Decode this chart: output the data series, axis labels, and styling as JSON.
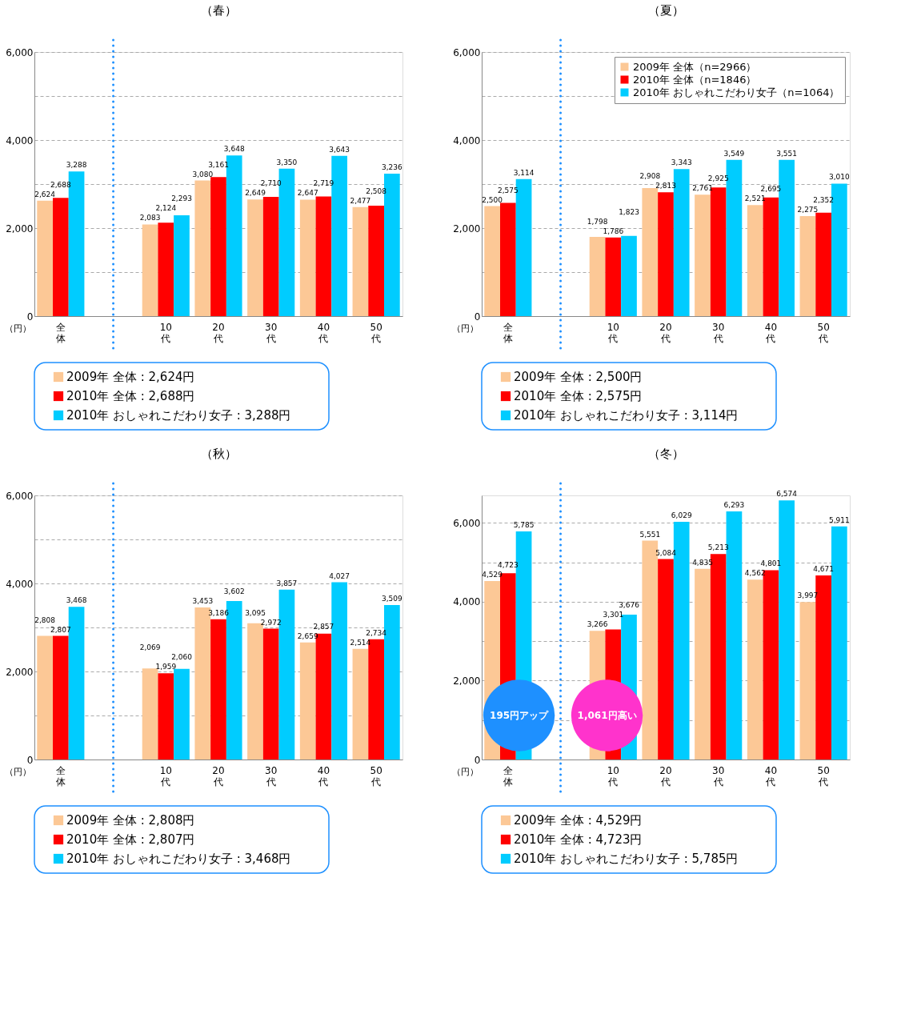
{
  "chart_data": [
    {
      "type": "bar",
      "title": "（春）",
      "ylabel": "（円）",
      "categories": [
        "全体",
        null,
        "10代",
        "20代",
        "30代",
        "40代",
        "50代"
      ],
      "series": [
        {
          "color": "#fcc896",
          "values": [
            2624,
            null,
            2083,
            3080,
            2649,
            2647,
            2477
          ],
          "value_labels": [
            "2,624",
            null,
            "2,083",
            "3,080",
            "2,649",
            "2,647",
            "2,477"
          ]
        },
        {
          "color": "#ff0000",
          "values": [
            2688,
            null,
            2124,
            3161,
            2710,
            2719,
            2508
          ],
          "value_labels": [
            "2,688",
            null,
            "2,124",
            "3,161",
            "2,710",
            "2,719",
            "2,508"
          ]
        },
        {
          "color": "#00ccff",
          "values": [
            3288,
            null,
            2293,
            3648,
            3350,
            3643,
            3236
          ],
          "value_labels": [
            "3,288",
            null,
            "2,293",
            "3,648",
            "3,350",
            "3,643",
            "3,236"
          ]
        }
      ],
      "ylim": [
        0,
        6000
      ],
      "yticks": [
        {
          "value": 0,
          "label": "0"
        },
        {
          "value": 1000,
          "label": null
        },
        {
          "value": 2000,
          "label": "2,000"
        },
        {
          "value": 3000,
          "label": null
        },
        {
          "value": 4000,
          "label": "4,000"
        },
        {
          "value": 5000,
          "label": null
        },
        {
          "value": 6000,
          "label": "6,000"
        }
      ],
      "grid": "y",
      "legend": false,
      "annotations": [
        "2009年 全体 : 2,624円",
        "2010年 全体 : 2,688円",
        "2010年 おしゃれこだわり女子 : 3,288円"
      ]
    },
    {
      "type": "bar",
      "title": "（夏）",
      "ylabel": "（円）",
      "categories": [
        "全体",
        null,
        "10代",
        "20代",
        "30代",
        "40代",
        "50代"
      ],
      "series": [
        {
          "name": "2009年 全体（n=2966）",
          "color": "#fcc896",
          "values": [
            2500,
            null,
            1798,
            2908,
            2761,
            2521,
            2275
          ],
          "value_labels": [
            "2,500",
            null,
            "1,798",
            "2,908",
            "2,761",
            "2,521",
            "2,275"
          ]
        },
        {
          "name": "2010年 全体（n=1846）",
          "color": "#ff0000",
          "values": [
            2575,
            null,
            1786,
            2813,
            2925,
            2695,
            2352
          ],
          "value_labels": [
            "2,575",
            null,
            "1,786",
            "2,813",
            "2,925",
            "2,695",
            "2,352"
          ]
        },
        {
          "name": "2010年 おしゃれこだわり女子（n=1064）",
          "color": "#00ccff",
          "values": [
            3114,
            null,
            1823,
            3343,
            3549,
            3551,
            3010
          ],
          "value_labels": [
            "3,114",
            null,
            "1,823",
            "3,343",
            "3,549",
            "3,551",
            "3,010"
          ]
        }
      ],
      "ylim": [
        0,
        6000
      ],
      "yticks": [
        {
          "value": 0,
          "label": "0"
        },
        {
          "value": 1000,
          "label": null
        },
        {
          "value": 2000,
          "label": "2,000"
        },
        {
          "value": 3000,
          "label": null
        },
        {
          "value": 4000,
          "label": "4,000"
        },
        {
          "value": 5000,
          "label": null
        },
        {
          "value": 6000,
          "label": "6,000"
        }
      ],
      "grid": "y",
      "legend": "top right",
      "annotations": [
        "2009年 全体 : 2,500円",
        "2010年 全体 : 2,575円",
        "2010年 おしゃれこだわり女子 : 3,114円"
      ]
    },
    {
      "type": "bar",
      "title": "（秋）",
      "ylabel": "（円）",
      "categories": [
        "全体",
        null,
        "10代",
        "20代",
        "30代",
        "40代",
        "50代"
      ],
      "series": [
        {
          "color": "#fcc896",
          "values": [
            2808,
            null,
            2069,
            3453,
            3095,
            2659,
            2514
          ],
          "value_labels": [
            "2,808",
            null,
            "2,069",
            "3,453",
            "3,095",
            "2,659",
            "2,514"
          ]
        },
        {
          "color": "#ff0000",
          "values": [
            2807,
            null,
            1959,
            3186,
            2972,
            2857,
            2734
          ],
          "value_labels": [
            "2,807",
            null,
            "1,959",
            "3,186",
            "2,972",
            "2,857",
            "2,734"
          ]
        },
        {
          "color": "#00ccff",
          "values": [
            3468,
            null,
            2060,
            3602,
            3857,
            4027,
            3509
          ],
          "value_labels": [
            "3,468",
            null,
            "2,060",
            "3,602",
            "3,857",
            "4,027",
            "3,509"
          ]
        }
      ],
      "ylim": [
        0,
        6000
      ],
      "yticks": [
        {
          "value": 0,
          "label": "0"
        },
        {
          "value": 1000,
          "label": null
        },
        {
          "value": 2000,
          "label": "2,000"
        },
        {
          "value": 3000,
          "label": null
        },
        {
          "value": 4000,
          "label": "4,000"
        },
        {
          "value": 5000,
          "label": null
        },
        {
          "value": 6000,
          "label": "6,000"
        }
      ],
      "grid": "y",
      "legend": false,
      "annotations": [
        "2009年 全体 : 2,808円",
        "2010年 全体 : 2,807円",
        "2010年 おしゃれこだわり女子 : 3,468円"
      ]
    },
    {
      "type": "bar",
      "title": "（冬）",
      "ylabel": "（円）",
      "categories": [
        "全体",
        null,
        "10代",
        "20代",
        "30代",
        "40代",
        "50代"
      ],
      "series": [
        {
          "color": "#fcc896",
          "values": [
            4529,
            null,
            3266,
            5551,
            4835,
            4562,
            3997
          ],
          "value_labels": [
            "4,529",
            null,
            "3,266",
            "5,551",
            "4,835",
            "4,562",
            "3,997"
          ]
        },
        {
          "color": "#ff0000",
          "values": [
            4723,
            null,
            3301,
            5084,
            5213,
            4801,
            4671
          ],
          "value_labels": [
            "4,723",
            null,
            "3,301",
            "5,084",
            "5,213",
            "4,801",
            "4,671"
          ]
        },
        {
          "color": "#00ccff",
          "values": [
            5785,
            null,
            3676,
            6029,
            6293,
            6574,
            5911
          ],
          "value_labels": [
            "5,785",
            null,
            "3,676",
            "6,029",
            "6,293",
            "6,574",
            "5,911"
          ]
        }
      ],
      "ylim": [
        0,
        6700
      ],
      "yticks": [
        {
          "value": 0,
          "label": "0"
        },
        {
          "value": 1000,
          "label": null
        },
        {
          "value": 2000,
          "label": "2,000"
        },
        {
          "value": 3000,
          "label": null
        },
        {
          "value": 4000,
          "label": "4,000"
        },
        {
          "value": 5000,
          "label": null
        },
        {
          "value": 6000,
          "label": "6,000"
        }
      ],
      "grid": "y",
      "legend": false,
      "annotations": [
        "2009年 全体 : 4,529円",
        "2010年 全体 : 4,723円",
        "2010年 おしゃれこだわり女子 : 5,785円",
        "195円アップ",
        "1,061円高い"
      ]
    }
  ]
}
